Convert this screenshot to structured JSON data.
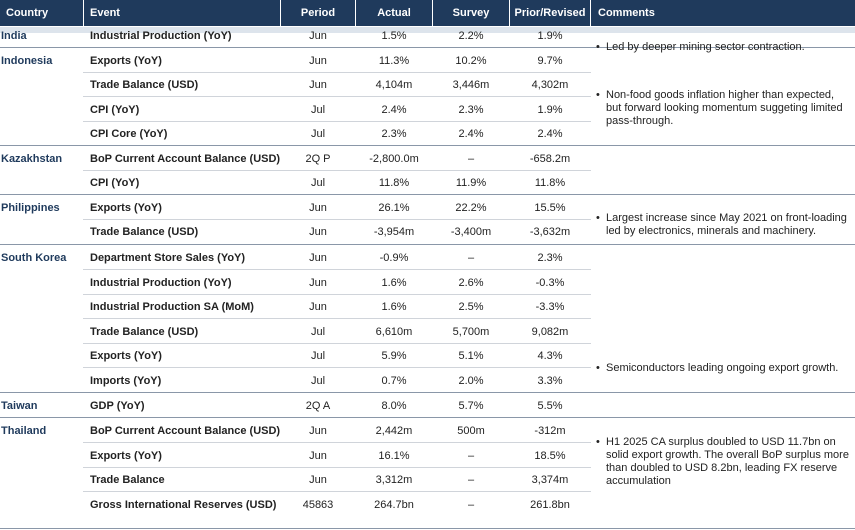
{
  "headers": {
    "country": "Country",
    "event": "Event",
    "period": "Period",
    "actual": "Actual",
    "survey": "Survey",
    "prior": "Prior/Revised",
    "comments": "Comments"
  },
  "rows": [
    {
      "country": "India",
      "event": "Industrial Production (YoY)",
      "period": "Jun",
      "actual": "1.5%",
      "survey": "2.2%",
      "prior": "1.9%"
    },
    {
      "country": "Indonesia",
      "event": "Exports (YoY)",
      "period": "Jun",
      "actual": "11.3%",
      "survey": "10.2%",
      "prior": "9.7%"
    },
    {
      "country": "",
      "event": "Trade Balance (USD)",
      "period": "Jun",
      "actual": "4,104m",
      "survey": "3,446m",
      "prior": "4,302m"
    },
    {
      "country": "",
      "event": "CPI (YoY)",
      "period": "Jul",
      "actual": "2.4%",
      "survey": "2.3%",
      "prior": "1.9%"
    },
    {
      "country": "",
      "event": "CPI Core (YoY)",
      "period": "Jul",
      "actual": "2.3%",
      "survey": "2.4%",
      "prior": "2.4%"
    },
    {
      "country": "Kazakhstan",
      "event": "BoP Current Account Balance (USD)",
      "period": "2Q P",
      "actual": "-2,800.0m",
      "survey": "–",
      "prior": "-658.2m"
    },
    {
      "country": "",
      "event": "CPI (YoY)",
      "period": "Jul",
      "actual": "11.8%",
      "survey": "11.9%",
      "prior": "11.8%"
    },
    {
      "country": "Philippines",
      "event": "Exports (YoY)",
      "period": "Jun",
      "actual": "26.1%",
      "survey": "22.2%",
      "prior": "15.5%"
    },
    {
      "country": "",
      "event": "Trade Balance (USD)",
      "period": "Jun",
      "actual": "-3,954m",
      "survey": "-3,400m",
      "prior": "-3,632m"
    },
    {
      "country": "South Korea",
      "event": "Department Store Sales (YoY)",
      "period": "Jun",
      "actual": "-0.9%",
      "survey": "–",
      "prior": "2.3%"
    },
    {
      "country": "",
      "event": "Industrial Production (YoY)",
      "period": "Jun",
      "actual": "1.6%",
      "survey": "2.6%",
      "prior": "-0.3%"
    },
    {
      "country": "",
      "event": "Industrial Production SA (MoM)",
      "period": "Jun",
      "actual": "1.6%",
      "survey": "2.5%",
      "prior": "-3.3%"
    },
    {
      "country": "",
      "event": "Trade Balance (USD)",
      "period": "Jul",
      "actual": "6,610m",
      "survey": "5,700m",
      "prior": "9,082m"
    },
    {
      "country": "",
      "event": "Exports (YoY)",
      "period": "Jul",
      "actual": "5.9%",
      "survey": "5.1%",
      "prior": "4.3%"
    },
    {
      "country": "",
      "event": "Imports (YoY)",
      "period": "Jul",
      "actual": "0.7%",
      "survey": "2.0%",
      "prior": "3.3%"
    },
    {
      "country": "Taiwan",
      "event": "GDP (YoY)",
      "period": "2Q A",
      "actual": "8.0%",
      "survey": "5.7%",
      "prior": "5.5%"
    },
    {
      "country": "Thailand",
      "event": "BoP Current Account Balance (USD)",
      "period": "Jun",
      "actual": "2,442m",
      "survey": "500m",
      "prior": "-312m"
    },
    {
      "country": "",
      "event": "Exports (YoY)",
      "period": "Jun",
      "actual": "16.1%",
      "survey": "–",
      "prior": "18.5%"
    },
    {
      "country": "",
      "event": "Trade Balance",
      "period": "Jun",
      "actual": "3,312m",
      "survey": "–",
      "prior": "3,374m"
    },
    {
      "country": "",
      "event": "Gross International Reserves (USD)",
      "period": "45863",
      "actual": "264.7bn",
      "survey": "–",
      "prior": "261.8bn"
    }
  ],
  "comments": [
    "Led by deeper mining sector contraction.",
    "Non-food goods inflation higher than expected, but forward looking momentum suggeting limited pass-through.",
    "Largest increase since May 2021 on front-loading led by electronics, minerals and machinery.",
    "Semiconductors leading ongoing export growth.",
    "H1 2025 CA surplus doubled to USD 11.7bn on solid export growth. The overall BoP surplus more than doubled to USD 8.2bn, leading FX reserve accumulation"
  ],
  "colors": {
    "header_bg": "#1f3a5c",
    "country_text": "#1f3a5c",
    "band": "#dde4ec"
  }
}
